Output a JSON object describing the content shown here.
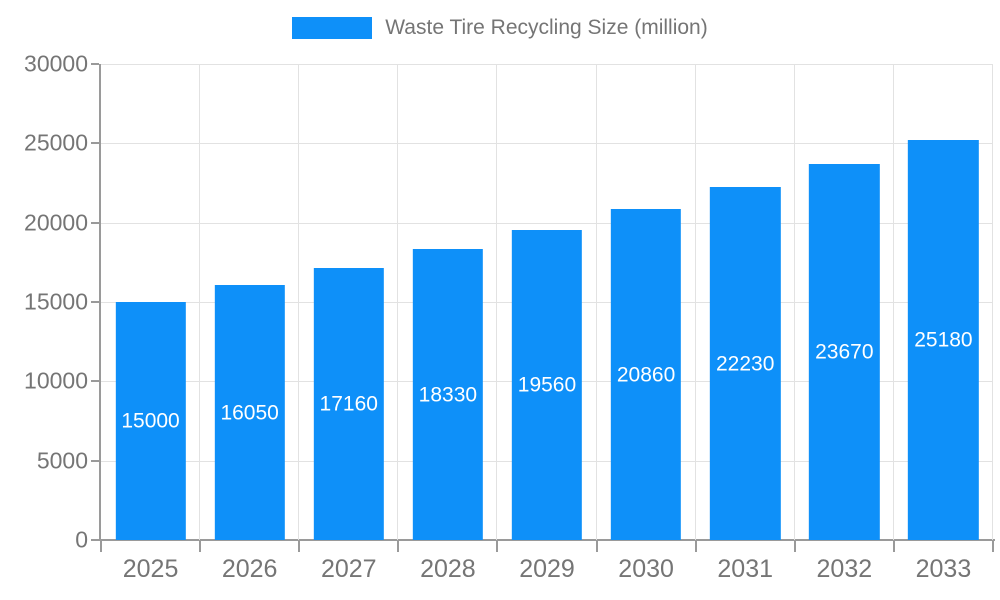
{
  "legend": {
    "label": "Waste Tire Recycling Size (million)"
  },
  "chart_data": {
    "type": "bar",
    "title": "Waste Tire Recycling Size (million)",
    "categories": [
      "2025",
      "2026",
      "2027",
      "2028",
      "2029",
      "2030",
      "2031",
      "2032",
      "2033"
    ],
    "values": [
      15000,
      16050,
      17160,
      18330,
      19560,
      20860,
      22230,
      23670,
      25180
    ],
    "xlabel": "",
    "ylabel": "",
    "ylim": [
      0,
      30000
    ],
    "ytick_step": 5000,
    "yticks": [
      0,
      5000,
      10000,
      15000,
      20000,
      25000,
      30000
    ],
    "grid": true,
    "legend_position": "top-center",
    "value_labels": "inside-center",
    "bar_color": "#0e90f9",
    "value_label_color": "#ffffff",
    "axis_color": "#9a9a9a",
    "grid_color": "#e2e2e2",
    "tick_label_color": "#757575",
    "background_color": "#ffffff"
  }
}
